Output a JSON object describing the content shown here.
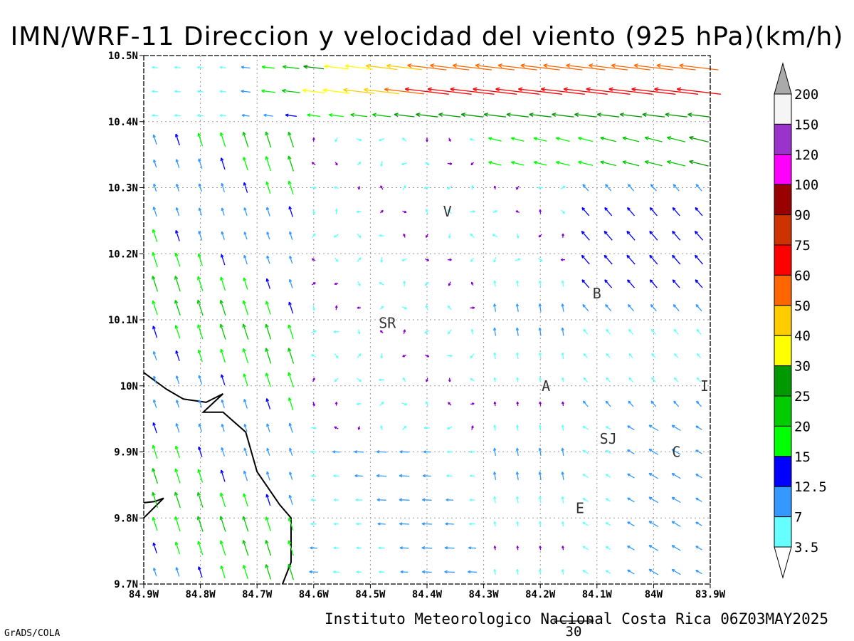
{
  "title": "IMN/WRF-11 Direccion y velocidad del viento (925 hPa)(km/h)",
  "footer": "Instituto Meteorologico Nacional Costa Rica 06Z03MAY2025",
  "credit": "GrADS/COLA",
  "reference_vector": {
    "label": "30",
    "speed": 30
  },
  "map": {
    "lon_range": [
      -84.9,
      -83.9
    ],
    "lat_range": [
      9.7,
      10.5
    ],
    "lon_ticks": [
      {
        "v": -84.9,
        "label": "84.9W"
      },
      {
        "v": -84.8,
        "label": "84.8W"
      },
      {
        "v": -84.7,
        "label": "84.7W"
      },
      {
        "v": -84.6,
        "label": "84.6W"
      },
      {
        "v": -84.5,
        "label": "84.5W"
      },
      {
        "v": -84.4,
        "label": "84.4W"
      },
      {
        "v": -84.3,
        "label": "84.3W"
      },
      {
        "v": -84.2,
        "label": "84.2W"
      },
      {
        "v": -84.1,
        "label": "84.1W"
      },
      {
        "v": -84.0,
        "label": "84W"
      },
      {
        "v": -83.9,
        "label": "83.9W"
      }
    ],
    "lat_ticks": [
      {
        "v": 9.7,
        "label": "9.7N"
      },
      {
        "v": 9.8,
        "label": "9.8N"
      },
      {
        "v": 9.9,
        "label": "9.9N"
      },
      {
        "v": 10.0,
        "label": "10N"
      },
      {
        "v": 10.1,
        "label": "10.1N"
      },
      {
        "v": 10.2,
        "label": "10.2N"
      },
      {
        "v": 10.3,
        "label": "10.3N"
      },
      {
        "v": 10.4,
        "label": "10.4N"
      },
      {
        "v": 10.5,
        "label": "10.5N"
      }
    ],
    "stations": [
      {
        "label": "V",
        "lon": -84.364,
        "lat": 10.264
      },
      {
        "label": "B",
        "lon": -84.1,
        "lat": 10.14
      },
      {
        "label": "SR",
        "lon": -84.47,
        "lat": 10.095
      },
      {
        "label": "A",
        "lon": -84.19,
        "lat": 10.0
      },
      {
        "label": "I",
        "lon": -83.91,
        "lat": 10.0
      },
      {
        "label": "SJ",
        "lon": -84.08,
        "lat": 9.92
      },
      {
        "label": "C",
        "lon": -83.96,
        "lat": 9.9
      },
      {
        "label": "E",
        "lon": -84.13,
        "lat": 9.815
      }
    ],
    "coastline": [
      [
        [
          -84.9,
          10.02
        ],
        [
          -84.86,
          9.995
        ],
        [
          -84.83,
          9.98
        ],
        [
          -84.79,
          9.975
        ],
        [
          -84.76,
          9.988
        ],
        [
          -84.795,
          9.96
        ],
        [
          -84.76,
          9.96
        ],
        [
          -84.72,
          9.93
        ],
        [
          -84.7,
          9.87
        ],
        [
          -84.66,
          9.82
        ],
        [
          -84.64,
          9.8
        ],
        [
          -84.64,
          9.733
        ],
        [
          -84.655,
          9.7
        ]
      ],
      [
        [
          -84.9,
          9.8
        ],
        [
          -84.865,
          9.83
        ],
        [
          -84.88,
          9.825
        ],
        [
          -84.9,
          9.823
        ]
      ]
    ]
  },
  "colorbar": {
    "colors": [
      "#66ffff",
      "#3399ff",
      "#0000ff",
      "#00ff00",
      "#00cc00",
      "#009900",
      "#ffff00",
      "#ffcc00",
      "#ff6600",
      "#ff0000",
      "#cc3300",
      "#990000",
      "#ff00ff",
      "#9933cc",
      "#f5f5f5"
    ],
    "labels": [
      "3.5",
      "7",
      "12.5",
      "15",
      "20",
      "25",
      "30",
      "40",
      "50",
      "60",
      "75",
      "90",
      "100",
      "120",
      "150",
      "200"
    ],
    "thresholds": [
      3.5,
      7,
      12.5,
      15,
      20,
      25,
      30,
      40,
      50,
      60,
      75,
      90,
      100,
      120,
      150,
      200
    ],
    "below_color": "#ffffff",
    "above_color": "#aaaaaa",
    "low_speed_color": "#8800cc"
  }
}
